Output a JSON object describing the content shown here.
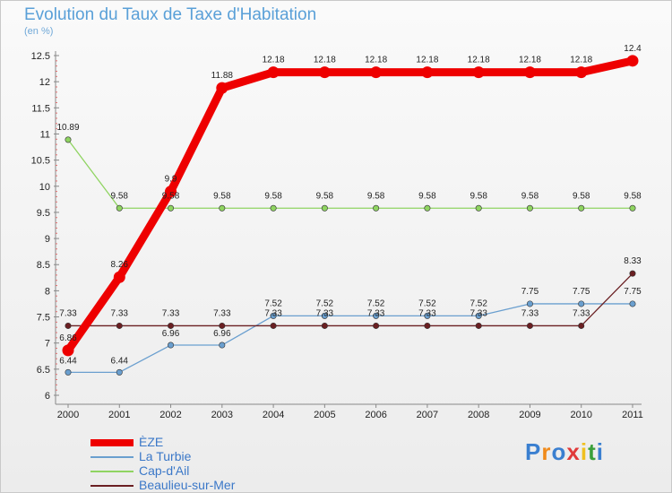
{
  "chart_data": {
    "type": "line",
    "title": "Evolution du Taux de Taxe d'Habitation",
    "ylabel": "(en %)",
    "xlabel": "",
    "x": [
      "2000",
      "2001",
      "2002",
      "2003",
      "2004",
      "2005",
      "2006",
      "2007",
      "2008",
      "2009",
      "2010",
      "2011"
    ],
    "ylim": [
      6,
      12.5
    ],
    "yticks": [
      "6",
      "6.5",
      "7",
      "7.5",
      "8",
      "8.5",
      "9",
      "9.5",
      "10",
      "10.5",
      "11",
      "11.5",
      "12",
      "12.5"
    ],
    "grid": false,
    "legend_position": "bottom-left",
    "series": [
      {
        "name": "La Turbie",
        "color": "#6a9fcf",
        "values": [
          6.44,
          6.44,
          6.96,
          6.96,
          7.52,
          7.52,
          7.52,
          7.52,
          7.52,
          7.75,
          7.75,
          7.75
        ],
        "labels": [
          "6.44",
          "6.44",
          "6.96",
          "6.96",
          "7.52",
          "7.52",
          "7.52",
          "7.52",
          "7.52",
          "7.75",
          "7.75",
          "7.75"
        ]
      },
      {
        "name": "Cap-d'Ail",
        "color": "#8fd461",
        "values": [
          10.89,
          9.58,
          9.58,
          9.58,
          9.58,
          9.58,
          9.58,
          9.58,
          9.58,
          9.58,
          9.58,
          9.58
        ],
        "labels": [
          "10.89",
          "9.58",
          "9.58",
          "9.58",
          "9.58",
          "9.58",
          "9.58",
          "9.58",
          "9.58",
          "9.58",
          "9.58",
          "9.58"
        ]
      },
      {
        "name": "Beaulieu-sur-Mer",
        "color": "#6a1f22",
        "values": [
          7.33,
          7.33,
          7.33,
          7.33,
          7.33,
          7.33,
          7.33,
          7.33,
          7.33,
          7.33,
          7.33,
          8.33
        ],
        "labels": [
          "7.33",
          "7.33",
          "7.33",
          "7.33",
          "7.33",
          "7.33",
          "7.33",
          "7.33",
          "7.33",
          "7.33",
          "7.33",
          "8.33"
        ]
      },
      {
        "name": "ÈZE",
        "color": "#ee0000",
        "values": [
          6.86,
          8.26,
          9.9,
          11.88,
          12.18,
          12.18,
          12.18,
          12.18,
          12.18,
          12.18,
          12.18,
          12.4
        ],
        "labels": [
          "6.86",
          "8.26",
          "9.9",
          "11.88",
          "12.18",
          "12.18",
          "12.18",
          "12.18",
          "12.18",
          "12.18",
          "12.18",
          "12.4"
        ]
      }
    ],
    "legend": [
      "ÈZE",
      "La Turbie",
      "Cap-d'Ail",
      "Beaulieu-sur-Mer"
    ]
  },
  "logo_text": [
    "P",
    "r",
    "o",
    "x",
    "i",
    "t",
    "i"
  ],
  "logo_colors": [
    "#3a7fd0",
    "#f08a1a",
    "#3a7fd0",
    "#e03a3a",
    "#f0c020",
    "#3a9f3a",
    "#3a7fd0"
  ]
}
